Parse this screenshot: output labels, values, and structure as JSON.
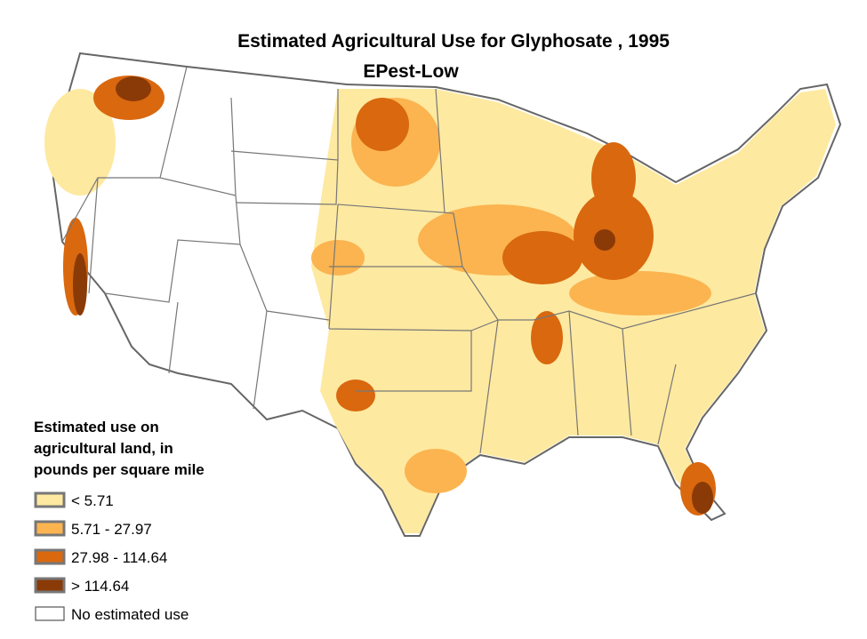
{
  "title": "Estimated Agricultural Use for Glyphosate , 1995",
  "subtitle": "EPest-Low",
  "legend": {
    "title_lines": [
      "Estimated use on",
      "agricultural land, in",
      "pounds per square mile"
    ],
    "items": [
      {
        "label": "< 5.71",
        "color": "#fee9a0"
      },
      {
        "label": "5.71 - 27.97",
        "color": "#fbb450"
      },
      {
        "label": "27.98 - 114.64",
        "color": "#d9680f"
      },
      {
        "label": "> 114.64",
        "color": "#8a3a07"
      },
      {
        "label": "No estimated use",
        "color": "#ffffff"
      }
    ]
  }
}
